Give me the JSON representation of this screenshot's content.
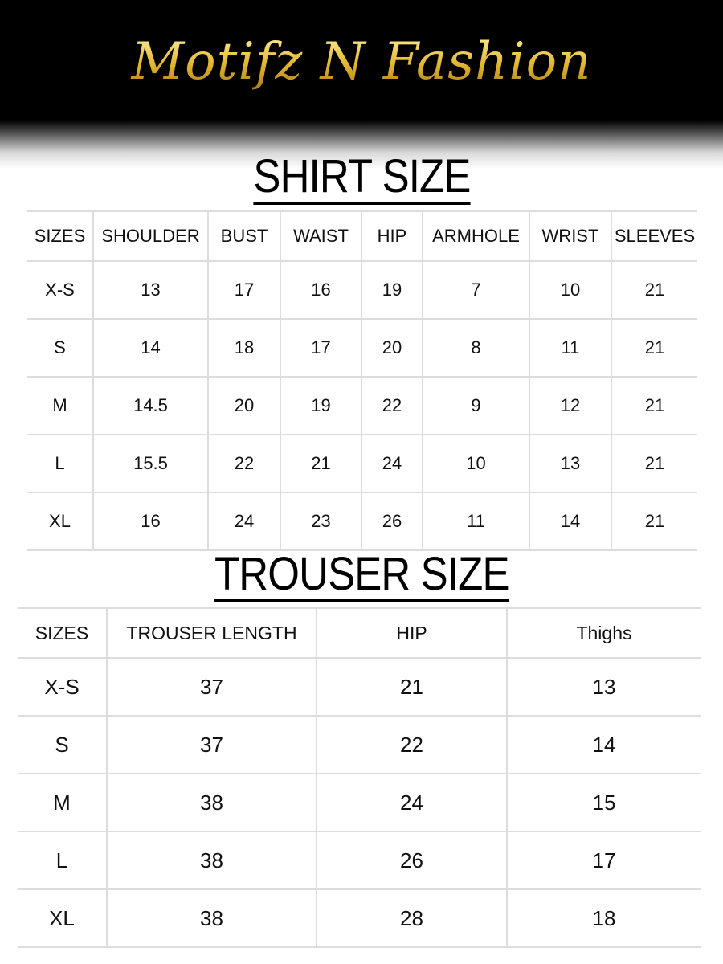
{
  "brand": {
    "logo_text": "Motifz N Fashion",
    "logo_color": "#e2b52c"
  },
  "shirt": {
    "title": "SHIRT SIZE",
    "headers": [
      "SIZES",
      "SHOULDER",
      "BUST",
      "WAIST",
      "HIP",
      "ARMHOLE",
      "WRIST",
      "SLEEVES"
    ],
    "rows": [
      [
        "X-S",
        "13",
        "17",
        "16",
        "19",
        "7",
        "10",
        "21"
      ],
      [
        "S",
        "14",
        "18",
        "17",
        "20",
        "8",
        "11",
        "21"
      ],
      [
        "M",
        "14.5",
        "20",
        "19",
        "22",
        "9",
        "12",
        "21"
      ],
      [
        "L",
        "15.5",
        "22",
        "21",
        "24",
        "10",
        "13",
        "21"
      ],
      [
        "XL",
        "16",
        "24",
        "23",
        "26",
        "11",
        "14",
        "21"
      ]
    ]
  },
  "trouser": {
    "title": "TROUSER SIZE",
    "headers": [
      "SIZES",
      "TROUSER LENGTH",
      "HIP",
      "Thighs"
    ],
    "rows": [
      [
        "X-S",
        "37",
        "21",
        "13"
      ],
      [
        "S",
        "37",
        "22",
        "14"
      ],
      [
        "M",
        "38",
        "24",
        "15"
      ],
      [
        "L",
        "38",
        "26",
        "17"
      ],
      [
        "XL",
        "38",
        "28",
        "18"
      ]
    ]
  }
}
